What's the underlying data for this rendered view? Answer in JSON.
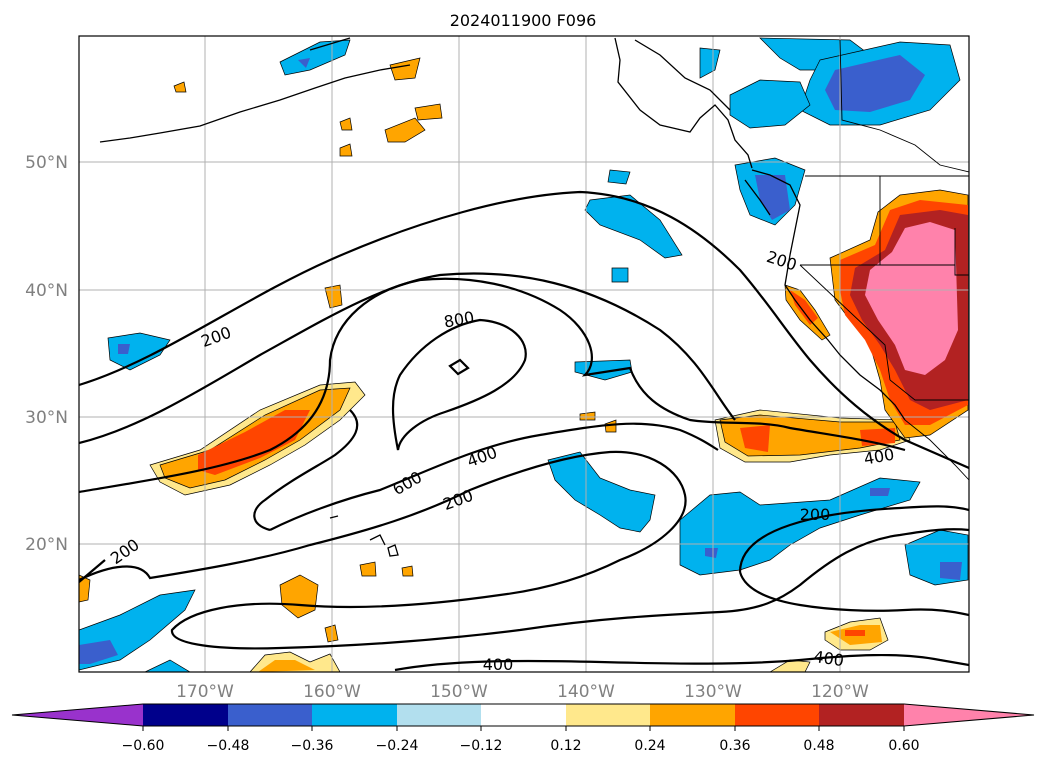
{
  "title": "2024011900 F096",
  "latitude_labels": [
    "50°N",
    "40°N",
    "30°N",
    "20°N"
  ],
  "longitude_labels": [
    "170°W",
    "160°W",
    "150°W",
    "140°W",
    "130°W",
    "120°W"
  ],
  "contour_labels": [
    "200",
    "800",
    "200",
    "400",
    "600",
    "200",
    "400",
    "200",
    "200",
    "400",
    "400"
  ],
  "colorbar": {
    "tick_labels": [
      "−0.60",
      "−0.48",
      "−0.36",
      "−0.24",
      "−0.12",
      "0.12",
      "0.24",
      "0.36",
      "0.48",
      "0.60"
    ],
    "colors": [
      "#9932cc",
      "#00008b",
      "#3a5fcd",
      "#00b2ee",
      "#b2dfee",
      "#ffffff",
      "#ffe88c",
      "#ffa500",
      "#ff4500",
      "#b22222",
      "#ff82ab"
    ]
  }
}
